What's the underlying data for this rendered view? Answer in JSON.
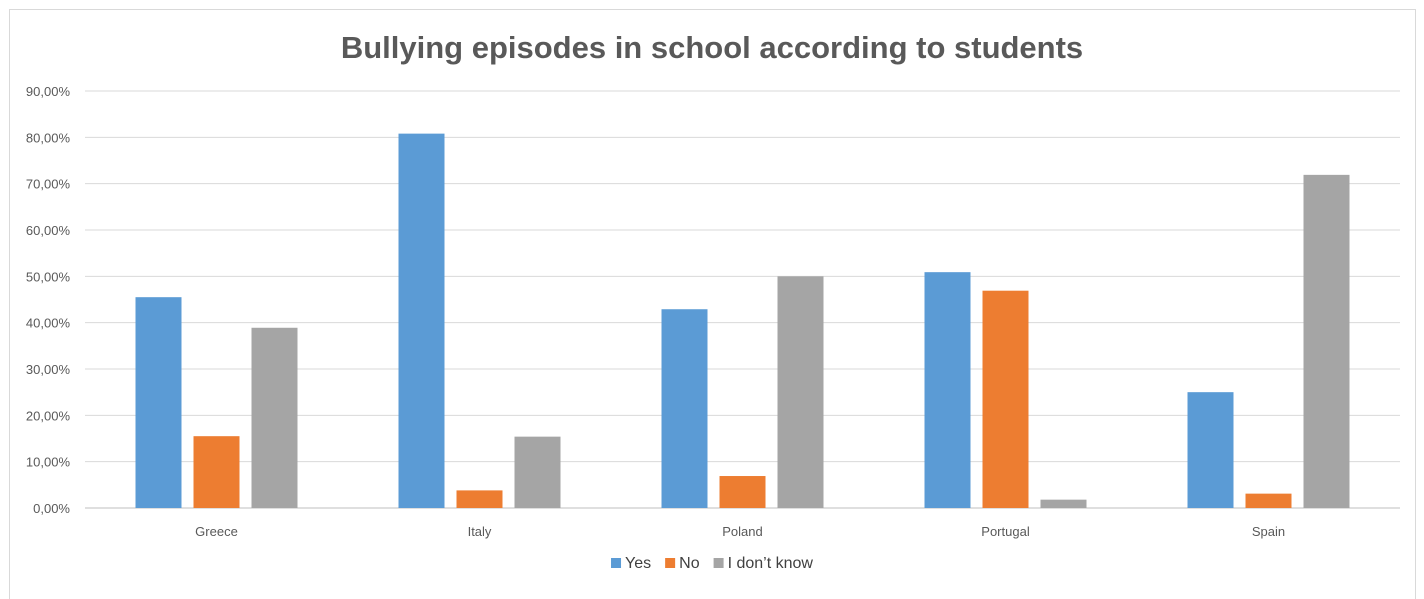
{
  "chart_data": {
    "type": "bar",
    "title": "Bullying episodes in school according to students",
    "xlabel": "",
    "ylabel": "",
    "categories": [
      "Greece",
      "Italy",
      "Poland",
      "Portugal",
      "Spain"
    ],
    "series": [
      {
        "name": "Yes",
        "color": "#5b9bd5",
        "values": [
          45.5,
          80.8,
          42.9,
          50.9,
          25.0
        ]
      },
      {
        "name": "No",
        "color": "#ed7d31",
        "values": [
          15.5,
          3.8,
          6.9,
          46.9,
          3.1
        ]
      },
      {
        "name": "I don’t know",
        "color": "#a5a5a5",
        "values": [
          38.9,
          15.4,
          50.0,
          1.8,
          71.9
        ]
      }
    ],
    "ylim": [
      0,
      90
    ],
    "y_ticks": [
      "0,00%",
      "10,00%",
      "20,00%",
      "30,00%",
      "40,00%",
      "50,00%",
      "60,00%",
      "70,00%",
      "80,00%",
      "90,00%"
    ],
    "grid": true,
    "legend_position": "bottom"
  }
}
